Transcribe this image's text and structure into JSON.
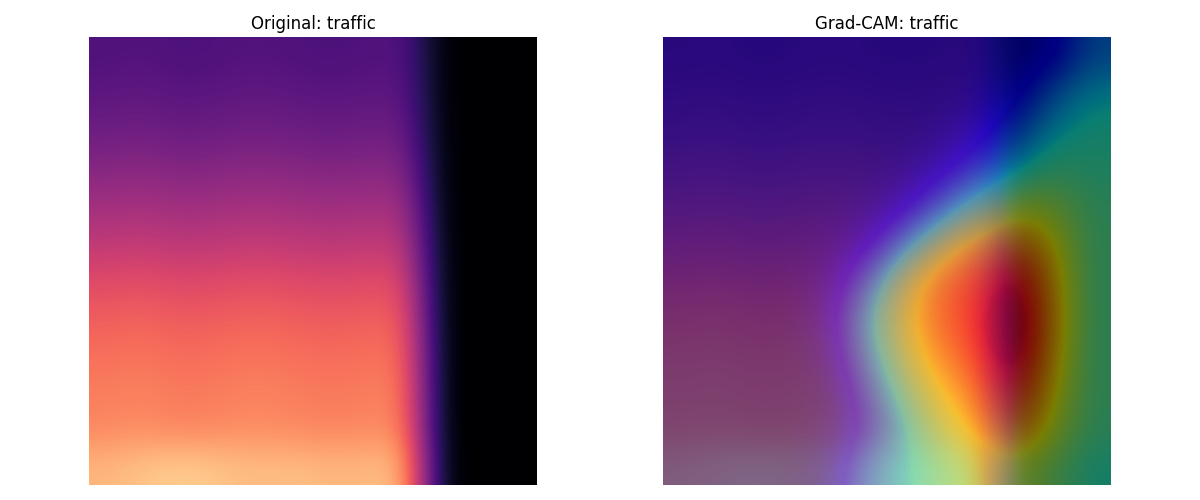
{
  "chart_data": [
    {
      "type": "heatmap",
      "title": "Original: traffic",
      "tick_labels": false,
      "range": [
        0,
        1
      ],
      "cells": [
        [
          0.25,
          0.26,
          0.24,
          0.25,
          0.26,
          0.25,
          0.24,
          0.25,
          0.26,
          0,
          0,
          0
        ],
        [
          0.28,
          0.29,
          0.27,
          0.28,
          0.29,
          0.28,
          0.27,
          0.28,
          0.28,
          0,
          0,
          0
        ],
        [
          0.32,
          0.33,
          0.31,
          0.32,
          0.33,
          0.32,
          0.31,
          0.32,
          0.32,
          0,
          0,
          0
        ],
        [
          0.38,
          0.39,
          0.37,
          0.38,
          0.39,
          0.38,
          0.37,
          0.38,
          0.38,
          0,
          0,
          0
        ],
        [
          0.45,
          0.46,
          0.44,
          0.45,
          0.46,
          0.45,
          0.44,
          0.45,
          0.45,
          0,
          0,
          0
        ],
        [
          0.52,
          0.53,
          0.51,
          0.52,
          0.53,
          0.52,
          0.51,
          0.52,
          0.52,
          0,
          0,
          0
        ],
        [
          0.6,
          0.61,
          0.59,
          0.6,
          0.61,
          0.6,
          0.59,
          0.6,
          0.6,
          0,
          0,
          0
        ],
        [
          0.66,
          0.67,
          0.65,
          0.66,
          0.67,
          0.66,
          0.65,
          0.66,
          0.66,
          0,
          0,
          0
        ],
        [
          0.7,
          0.71,
          0.69,
          0.7,
          0.71,
          0.7,
          0.69,
          0.7,
          0.7,
          0,
          0,
          0
        ],
        [
          0.73,
          0.74,
          0.72,
          0.73,
          0.74,
          0.73,
          0.72,
          0.73,
          0.73,
          0,
          0,
          0
        ],
        [
          0.75,
          0.76,
          0.74,
          0.75,
          0.76,
          0.75,
          0.74,
          0.75,
          0.75,
          0,
          0,
          0
        ],
        [
          0.85,
          0.88,
          0.9,
          0.88,
          0.86,
          0.87,
          0.85,
          0.86,
          0.85,
          0,
          0,
          0
        ]
      ]
    },
    {
      "type": "overlay",
      "title": "Grad-CAM: traffic",
      "tick_labels": false,
      "range": [
        0,
        1
      ],
      "cells": [
        [
          0.25,
          0.26,
          0.24,
          0.25,
          0.26,
          0.25,
          0.24,
          0.25,
          0.26,
          0,
          0,
          0
        ],
        [
          0.28,
          0.29,
          0.27,
          0.28,
          0.29,
          0.28,
          0.27,
          0.28,
          0.28,
          0,
          0,
          0
        ],
        [
          0.32,
          0.33,
          0.31,
          0.32,
          0.33,
          0.32,
          0.31,
          0.32,
          0.32,
          0,
          0,
          0
        ],
        [
          0.38,
          0.39,
          0.37,
          0.38,
          0.39,
          0.38,
          0.37,
          0.38,
          0.38,
          0,
          0,
          0
        ],
        [
          0.45,
          0.46,
          0.44,
          0.45,
          0.46,
          0.45,
          0.44,
          0.45,
          0.45,
          0,
          0,
          0
        ],
        [
          0.52,
          0.53,
          0.51,
          0.52,
          0.53,
          0.52,
          0.51,
          0.52,
          0.52,
          0,
          0,
          0
        ],
        [
          0.6,
          0.61,
          0.59,
          0.6,
          0.61,
          0.6,
          0.59,
          0.6,
          0.6,
          0,
          0,
          0
        ],
        [
          0.66,
          0.67,
          0.65,
          0.66,
          0.67,
          0.66,
          0.65,
          0.66,
          0.66,
          0,
          0,
          0
        ],
        [
          0.7,
          0.71,
          0.69,
          0.7,
          0.71,
          0.7,
          0.69,
          0.7,
          0.7,
          0,
          0,
          0
        ],
        [
          0.73,
          0.74,
          0.72,
          0.73,
          0.74,
          0.73,
          0.72,
          0.73,
          0.73,
          0,
          0,
          0
        ],
        [
          0.75,
          0.76,
          0.74,
          0.75,
          0.76,
          0.75,
          0.74,
          0.75,
          0.75,
          0,
          0,
          0
        ],
        [
          0.85,
          0.88,
          0.9,
          0.88,
          0.86,
          0.87,
          0.85,
          0.86,
          0.85,
          0,
          0,
          0
        ]
      ],
      "heat": [
        [
          0,
          0,
          0,
          0,
          0,
          0,
          0,
          0,
          0,
          0.05,
          0.1,
          0.25
        ],
        [
          0,
          0,
          0,
          0,
          0,
          0,
          0,
          0,
          0.02,
          0.1,
          0.25,
          0.35
        ],
        [
          0,
          0,
          0,
          0,
          0,
          0,
          0,
          0.02,
          0.08,
          0.2,
          0.35,
          0.4
        ],
        [
          0,
          0,
          0,
          0,
          0,
          0,
          0.02,
          0.08,
          0.2,
          0.35,
          0.45,
          0.42
        ],
        [
          0,
          0,
          0,
          0,
          0,
          0.02,
          0.08,
          0.25,
          0.45,
          0.6,
          0.55,
          0.45
        ],
        [
          0,
          0,
          0,
          0,
          0.02,
          0.08,
          0.3,
          0.55,
          0.7,
          0.8,
          0.65,
          0.45
        ],
        [
          0,
          0,
          0,
          0,
          0.05,
          0.25,
          0.55,
          0.75,
          0.85,
          0.95,
          0.7,
          0.45
        ],
        [
          0,
          0,
          0,
          0,
          0.08,
          0.35,
          0.6,
          0.8,
          0.9,
          1.0,
          0.72,
          0.45
        ],
        [
          0,
          0,
          0,
          0,
          0.05,
          0.3,
          0.55,
          0.75,
          0.88,
          0.98,
          0.7,
          0.45
        ],
        [
          0,
          0,
          0,
          0,
          0.02,
          0.2,
          0.45,
          0.65,
          0.8,
          0.9,
          0.65,
          0.45
        ],
        [
          0,
          0,
          0,
          0,
          0.02,
          0.15,
          0.35,
          0.55,
          0.7,
          0.8,
          0.6,
          0.45
        ],
        [
          0,
          0,
          0,
          0,
          0.05,
          0.25,
          0.35,
          0.45,
          0.55,
          0.6,
          0.5,
          0.4
        ]
      ]
    }
  ]
}
